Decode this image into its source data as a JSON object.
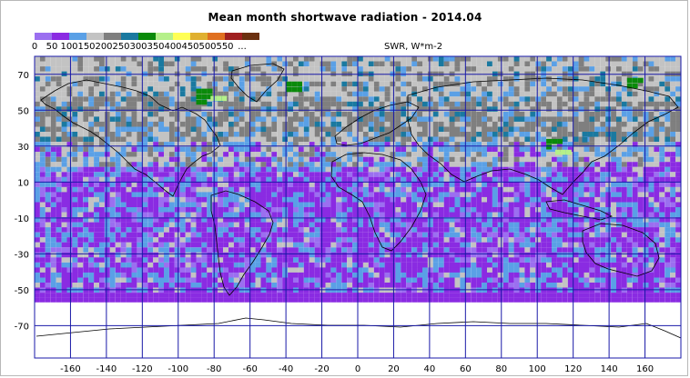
{
  "title": "Mean month shortwave radiation - 2014.04",
  "legend": {
    "colors": [
      "#9b6ff0",
      "#8a2be2",
      "#5aa0e6",
      "#c3c3c3",
      "#7f7f7f",
      "#1a79a0",
      "#0a8a0a",
      "#b5f08a",
      "#ffff55",
      "#e0b030",
      "#e07020",
      "#a02020",
      "#6b3010"
    ],
    "labels": [
      "0",
      "50",
      "100",
      "150",
      "200",
      "250",
      "300",
      "350",
      "400",
      "450",
      "500",
      "550",
      "..."
    ],
    "units": "SWR, W*m-2"
  },
  "axes": {
    "x_ticks": [
      -160,
      -140,
      -120,
      -100,
      -80,
      -60,
      -40,
      -20,
      0,
      20,
      40,
      60,
      80,
      100,
      120,
      140,
      160
    ],
    "y_ticks": [
      70,
      50,
      30,
      10,
      -10,
      -30,
      -50,
      -70
    ],
    "lon_range": [
      -180,
      180
    ],
    "lat_range": [
      -90,
      90
    ]
  },
  "colors": {
    "grid": "#1a1aa8",
    "coast": "#000000",
    "ocean_south": "#8a2be2",
    "no_data": "#ffffff"
  },
  "zones": [
    {
      "lat": [
        60,
        80
      ],
      "dominant": "#c3c3c3"
    },
    {
      "lat": [
        35,
        60
      ],
      "dominant": "#7f7f7f"
    },
    {
      "lat": [
        20,
        35
      ],
      "dominant": "#5aa0e6"
    },
    {
      "lat": [
        -50,
        20
      ],
      "dominant": "#8a2be2"
    },
    {
      "lat": [
        -57,
        -50
      ],
      "dominant": "#8a2be2"
    }
  ]
}
